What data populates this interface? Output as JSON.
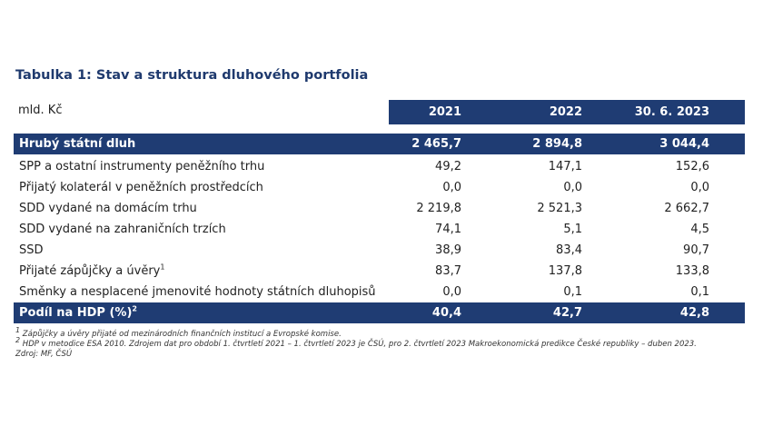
{
  "title": "Tabulka 1: Stav a struktura dluhového portfolia",
  "unit": "mld. Kč",
  "columns": [
    "2021",
    "2022",
    "30. 6. 2023"
  ],
  "gross_debt": {
    "label": "Hrubý státní dluh",
    "values": [
      "2 465,7",
      "2 894,8",
      "3 044,4"
    ]
  },
  "rows": [
    {
      "label": "SPP a ostatní instrumenty peněžního trhu",
      "sup": "",
      "values": [
        "49,2",
        "147,1",
        "152,6"
      ]
    },
    {
      "label": "Přijatý kolaterál v peněžních prostředcích",
      "sup": "",
      "values": [
        "0,0",
        "0,0",
        "0,0"
      ]
    },
    {
      "label": "SDD vydané na domácím trhu",
      "sup": "",
      "values": [
        "2 219,8",
        "2 521,3",
        "2 662,7"
      ]
    },
    {
      "label": "SDD vydané na zahraničních trzích",
      "sup": "",
      "values": [
        "74,1",
        "5,1",
        "4,5"
      ]
    },
    {
      "label": "SSD",
      "sup": "",
      "values": [
        "38,9",
        "83,4",
        "90,7"
      ]
    },
    {
      "label": "Přijaté zápůjčky a úvěry",
      "sup": "1",
      "values": [
        "83,7",
        "137,8",
        "133,8"
      ]
    },
    {
      "label": "Směnky a nesplacené jmenovité hodnoty státních dluhopisů",
      "sup": "",
      "values": [
        "0,0",
        "0,1",
        "0,1"
      ]
    }
  ],
  "gdp_share": {
    "label": "Podíl na HDP (%)",
    "sup": "2",
    "values": [
      "40,4",
      "42,7",
      "42,8"
    ]
  },
  "notes": [
    {
      "sup": "1",
      "text": "Zápůjčky a úvěry přijaté od mezinárodních finančních institucí a Evropské komise."
    },
    {
      "sup": "2",
      "text": "HDP v metodice ESA 2010. Zdrojem dat pro období 1. čtvrtletí 2021 – 1. čtvrtletí 2023 je ČSÚ, pro 2. čtvrtletí 2023 Makroekonomická predikce České republiky – duben 2023."
    },
    {
      "sup": "",
      "text": "Zdroj: MF, ČSÚ"
    }
  ]
}
